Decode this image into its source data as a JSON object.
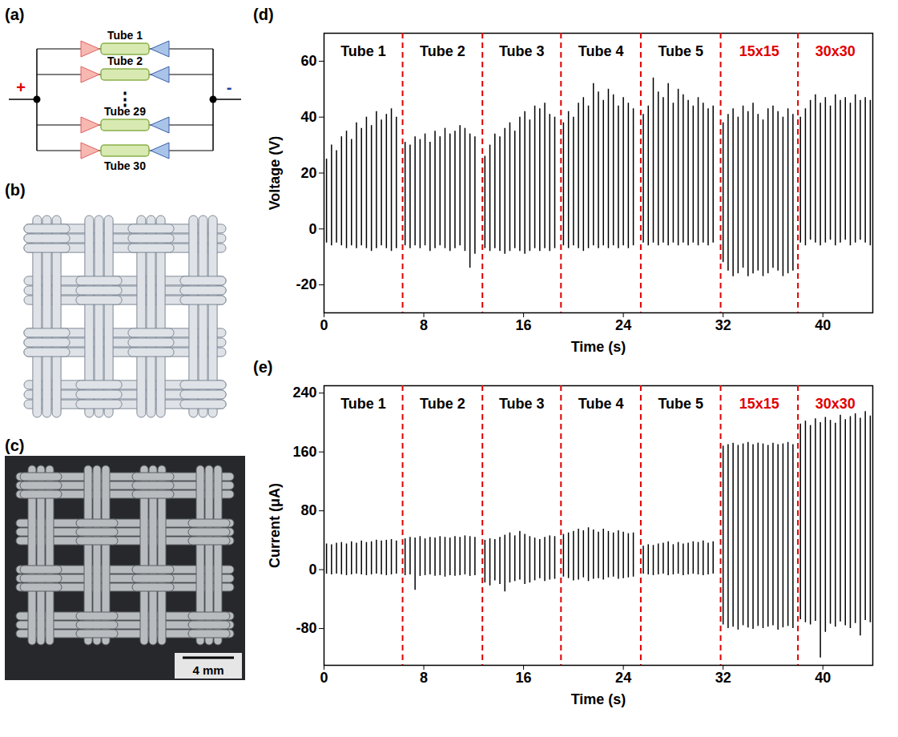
{
  "diagrams": {
    "a": {
      "letter": "(a)",
      "tubes": [
        "Tube 1",
        "Tube 2",
        "Tube 29",
        "Tube 30"
      ],
      "ellipsis": "⋮",
      "plus": "+",
      "minus": "-"
    },
    "b": {
      "letter": "(b)"
    },
    "c": {
      "letter": "(c)",
      "scale_bar": "4 mm"
    }
  },
  "chart_data": [
    {
      "type": "spike",
      "letter": "(d)",
      "x_label": "Time (s)",
      "y_label": "Voltage (V)",
      "xlim": [
        0,
        44
      ],
      "xticks": [
        0,
        8,
        16,
        24,
        32,
        40
      ],
      "ylim": [
        -30,
        70
      ],
      "yticks": [
        -20,
        0,
        20,
        40,
        60
      ],
      "color": "#000000",
      "segments": [
        {
          "label": "Tube 1",
          "color": "#000000"
        },
        {
          "label": "Tube 2",
          "color": "#000000"
        },
        {
          "label": "Tube 3",
          "color": "#000000"
        },
        {
          "label": "Tube 4",
          "color": "#000000"
        },
        {
          "label": "Tube 5",
          "color": "#000000"
        },
        {
          "label": "15x15",
          "color": "#e00000"
        },
        {
          "label": "30x30",
          "color": "#e00000"
        }
      ],
      "dividers": {
        "x": [
          6.3,
          12.7,
          19.0,
          25.4,
          31.8,
          38.0
        ],
        "color": "#e00000",
        "line_style": "dashed"
      },
      "x": [
        0.2,
        0.6,
        1.0,
        1.4,
        1.8,
        2.2,
        2.6,
        3.0,
        3.4,
        3.8,
        4.2,
        4.6,
        5.0,
        5.4,
        5.8,
        6.5,
        6.9,
        7.3,
        7.7,
        8.1,
        8.5,
        8.9,
        9.3,
        9.7,
        10.1,
        10.5,
        10.9,
        11.3,
        11.7,
        12.1,
        12.9,
        13.3,
        13.7,
        14.1,
        14.5,
        14.9,
        15.3,
        15.7,
        16.1,
        16.5,
        16.9,
        17.3,
        17.7,
        18.1,
        18.5,
        19.2,
        19.6,
        20.0,
        20.4,
        20.8,
        21.2,
        21.6,
        22.0,
        22.4,
        22.8,
        23.2,
        23.6,
        24.0,
        24.4,
        24.8,
        25.6,
        26.0,
        26.4,
        26.8,
        27.2,
        27.6,
        28.0,
        28.4,
        28.8,
        29.2,
        29.6,
        30.0,
        30.4,
        30.8,
        31.2,
        32.0,
        32.4,
        32.8,
        33.2,
        33.6,
        34.0,
        34.4,
        34.8,
        35.2,
        35.6,
        36.0,
        36.4,
        36.8,
        37.2,
        37.6,
        38.2,
        38.6,
        39.0,
        39.4,
        39.8,
        40.2,
        40.6,
        41.0,
        41.4,
        41.8,
        42.2,
        42.6,
        43.0,
        43.4,
        43.8
      ],
      "max": [
        25,
        30,
        28,
        33,
        35,
        32,
        38,
        36,
        40,
        37,
        42,
        39,
        41,
        43,
        40,
        31,
        30,
        33,
        32,
        34,
        31,
        35,
        33,
        36,
        34,
        35,
        37,
        36,
        34,
        33,
        26,
        30,
        34,
        33,
        36,
        38,
        35,
        40,
        42,
        39,
        44,
        43,
        45,
        41,
        40,
        38,
        42,
        40,
        45,
        47,
        44,
        52,
        49,
        46,
        50,
        48,
        44,
        47,
        45,
        43,
        41,
        44,
        54,
        49,
        47,
        52,
        45,
        50,
        48,
        46,
        44,
        47,
        45,
        43,
        44,
        38,
        41,
        43,
        40,
        44,
        42,
        45,
        41,
        39,
        43,
        44,
        42,
        40,
        43,
        41,
        40,
        43,
        46,
        48,
        45,
        47,
        44,
        48,
        46,
        47,
        45,
        48,
        46,
        47,
        46
      ],
      "min": [
        -5,
        -6,
        -5,
        -6,
        -7,
        -6,
        -7,
        -6,
        -7,
        -8,
        -7,
        -6,
        -7,
        -8,
        -7,
        -6,
        -7,
        -6,
        -7,
        -6,
        -8,
        -7,
        -6,
        -7,
        -8,
        -7,
        -6,
        -8,
        -14,
        -9,
        -7,
        -8,
        -7,
        -8,
        -9,
        -8,
        -7,
        -8,
        -9,
        -8,
        -7,
        -8,
        -7,
        -8,
        -7,
        -6,
        -7,
        -6,
        -7,
        -8,
        -7,
        -6,
        -7,
        -6,
        -7,
        -6,
        -7,
        -6,
        -7,
        -6,
        -5,
        -6,
        -5,
        -6,
        -5,
        -6,
        -5,
        -6,
        -5,
        -6,
        -5,
        -6,
        -5,
        -6,
        -5,
        -12,
        -15,
        -17,
        -16,
        -14,
        -17,
        -16,
        -15,
        -17,
        -16,
        -14,
        -15,
        -17,
        -16,
        -15,
        -5,
        -6,
        -4,
        -5,
        -6,
        -5,
        -4,
        -6,
        -5,
        -4,
        -6,
        -5,
        -4,
        -5,
        -6
      ]
    },
    {
      "type": "spike",
      "letter": "(e)",
      "x_label": "Time (s)",
      "y_label": "Current (μA)",
      "xlim": [
        0,
        44
      ],
      "xticks": [
        0,
        8,
        16,
        24,
        32,
        40
      ],
      "ylim": [
        -130,
        250
      ],
      "yticks": [
        -80,
        0,
        80,
        160,
        240
      ],
      "color": "#000000",
      "segments": [
        {
          "label": "Tube 1",
          "color": "#000000"
        },
        {
          "label": "Tube 2",
          "color": "#000000"
        },
        {
          "label": "Tube 3",
          "color": "#000000"
        },
        {
          "label": "Tube 4",
          "color": "#000000"
        },
        {
          "label": "Tube 5",
          "color": "#000000"
        },
        {
          "label": "15x15",
          "color": "#e00000"
        },
        {
          "label": "30x30",
          "color": "#e00000"
        }
      ],
      "dividers": {
        "x": [
          6.3,
          12.7,
          19.0,
          25.4,
          31.8,
          38.0
        ],
        "color": "#e00000",
        "line_style": "dashed"
      },
      "x": [
        0.2,
        0.6,
        1.0,
        1.4,
        1.8,
        2.2,
        2.6,
        3.0,
        3.4,
        3.8,
        4.2,
        4.6,
        5.0,
        5.4,
        5.8,
        6.5,
        6.9,
        7.3,
        7.7,
        8.1,
        8.5,
        8.9,
        9.3,
        9.7,
        10.1,
        10.5,
        10.9,
        11.3,
        11.7,
        12.1,
        12.9,
        13.3,
        13.7,
        14.1,
        14.5,
        14.9,
        15.3,
        15.7,
        16.1,
        16.5,
        16.9,
        17.3,
        17.7,
        18.1,
        18.5,
        19.2,
        19.6,
        20.0,
        20.4,
        20.8,
        21.2,
        21.6,
        22.0,
        22.4,
        22.8,
        23.2,
        23.6,
        24.0,
        24.4,
        24.8,
        25.6,
        26.0,
        26.4,
        26.8,
        27.2,
        27.6,
        28.0,
        28.4,
        28.8,
        29.2,
        29.6,
        30.0,
        30.4,
        30.8,
        31.2,
        32.0,
        32.4,
        32.8,
        33.2,
        33.6,
        34.0,
        34.4,
        34.8,
        35.2,
        35.6,
        36.0,
        36.4,
        36.8,
        37.2,
        37.6,
        38.2,
        38.6,
        39.0,
        39.4,
        39.8,
        40.2,
        40.6,
        41.0,
        41.4,
        41.8,
        42.2,
        42.6,
        43.0,
        43.4,
        43.8
      ],
      "max": [
        35,
        34,
        36,
        37,
        35,
        38,
        36,
        39,
        37,
        38,
        40,
        39,
        40,
        41,
        39,
        42,
        44,
        43,
        45,
        42,
        44,
        43,
        45,
        44,
        43,
        45,
        44,
        46,
        45,
        44,
        40,
        42,
        41,
        44,
        47,
        50,
        46,
        52,
        48,
        45,
        43,
        41,
        44,
        46,
        45,
        48,
        50,
        52,
        55,
        53,
        57,
        54,
        51,
        55,
        52,
        50,
        53,
        51,
        49,
        50,
        32,
        34,
        33,
        35,
        36,
        38,
        34,
        37,
        35,
        36,
        38,
        37,
        39,
        36,
        38,
        168,
        170,
        172,
        169,
        171,
        173,
        170,
        172,
        171,
        169,
        172,
        170,
        171,
        173,
        170,
        198,
        202,
        196,
        205,
        200,
        207,
        203,
        199,
        210,
        204,
        208,
        212,
        206,
        215,
        209
      ],
      "min": [
        -6,
        -7,
        -6,
        -7,
        -8,
        -7,
        -6,
        -7,
        -8,
        -7,
        -6,
        -7,
        -8,
        -7,
        -6,
        -8,
        -7,
        -28,
        -9,
        -8,
        -7,
        -9,
        -8,
        -10,
        -8,
        -9,
        -8,
        -7,
        -9,
        -8,
        -18,
        -22,
        -15,
        -20,
        -30,
        -18,
        -16,
        -14,
        -20,
        -18,
        -15,
        -12,
        -16,
        -14,
        -13,
        -10,
        -12,
        -15,
        -14,
        -11,
        -16,
        -13,
        -12,
        -14,
        -11,
        -10,
        -13,
        -12,
        -11,
        -10,
        -6,
        -7,
        -8,
        -7,
        -6,
        -8,
        -7,
        -6,
        -8,
        -7,
        -6,
        -7,
        -8,
        -7,
        -6,
        -75,
        -80,
        -78,
        -82,
        -76,
        -79,
        -81,
        -77,
        -80,
        -78,
        -76,
        -82,
        -79,
        -77,
        -80,
        -68,
        -72,
        -75,
        -70,
        -120,
        -85,
        -74,
        -78,
        -71,
        -76,
        -80,
        -73,
        -90,
        -69,
        -72
      ]
    }
  ]
}
